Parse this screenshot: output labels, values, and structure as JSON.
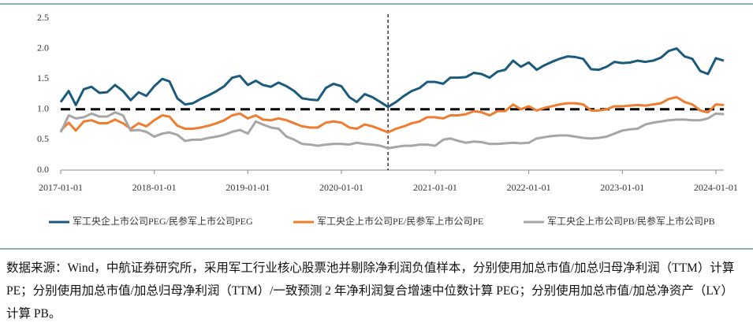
{
  "chart_data": {
    "type": "line",
    "x": [
      "2017-01-01",
      "2017-02-01",
      "2017-03-01",
      "2017-04-01",
      "2017-05-01",
      "2017-06-01",
      "2017-07-01",
      "2017-08-01",
      "2017-09-01",
      "2017-10-01",
      "2017-11-01",
      "2017-12-01",
      "2018-01-01",
      "2018-02-01",
      "2018-03-01",
      "2018-04-01",
      "2018-05-01",
      "2018-06-01",
      "2018-07-01",
      "2018-08-01",
      "2018-09-01",
      "2018-10-01",
      "2018-11-01",
      "2018-12-01",
      "2019-01-01",
      "2019-02-01",
      "2019-03-01",
      "2019-04-01",
      "2019-05-01",
      "2019-06-01",
      "2019-07-01",
      "2019-08-01",
      "2019-09-01",
      "2019-10-01",
      "2019-11-01",
      "2019-12-01",
      "2020-01-01",
      "2020-02-01",
      "2020-03-01",
      "2020-04-01",
      "2020-05-01",
      "2020-06-01",
      "2020-07-01",
      "2020-08-01",
      "2020-09-01",
      "2020-10-01",
      "2020-11-01",
      "2020-12-01",
      "2021-01-01",
      "2021-02-01",
      "2021-03-01",
      "2021-04-01",
      "2021-05-01",
      "2021-06-01",
      "2021-07-01",
      "2021-08-01",
      "2021-09-01",
      "2021-10-01",
      "2021-11-01",
      "2021-12-01",
      "2022-01-01",
      "2022-02-01",
      "2022-03-01",
      "2022-04-01",
      "2022-05-01",
      "2022-06-01",
      "2022-07-01",
      "2022-08-01",
      "2022-09-01",
      "2022-10-01",
      "2022-11-01",
      "2022-12-01",
      "2023-01-01",
      "2023-02-01",
      "2023-03-01",
      "2023-04-01",
      "2023-05-01",
      "2023-06-01",
      "2023-07-01",
      "2023-08-01",
      "2023-09-01",
      "2023-10-01",
      "2023-11-01",
      "2023-12-01",
      "2024-01-01",
      "2024-02-01"
    ],
    "series": [
      {
        "name": "军工央企上市公司PEG/民参军上市公司PEG",
        "color": "#1b5a7d",
        "values": [
          1.12,
          1.3,
          1.07,
          1.33,
          1.37,
          1.27,
          1.28,
          1.4,
          1.3,
          1.15,
          1.28,
          1.22,
          1.38,
          1.5,
          1.46,
          1.18,
          1.08,
          1.1,
          1.17,
          1.23,
          1.3,
          1.38,
          1.52,
          1.55,
          1.4,
          1.47,
          1.4,
          1.37,
          1.44,
          1.38,
          1.3,
          1.18,
          1.16,
          1.15,
          1.35,
          1.42,
          1.38,
          1.2,
          1.12,
          1.25,
          1.2,
          1.12,
          1.04,
          1.12,
          1.22,
          1.3,
          1.35,
          1.45,
          1.45,
          1.42,
          1.52,
          1.52,
          1.53,
          1.6,
          1.58,
          1.52,
          1.62,
          1.65,
          1.8,
          1.7,
          1.77,
          1.65,
          1.72,
          1.78,
          1.83,
          1.87,
          1.86,
          1.83,
          1.66,
          1.65,
          1.7,
          1.78,
          1.76,
          1.77,
          1.8,
          1.78,
          1.8,
          1.85,
          1.96,
          2.0,
          1.87,
          1.83,
          1.63,
          1.58,
          1.84,
          1.8
        ]
      },
      {
        "name": "军工央企上市公司PE/民参军上市公司PE",
        "color": "#ed7d31",
        "values": [
          0.65,
          0.78,
          0.65,
          0.8,
          0.82,
          0.77,
          0.77,
          0.83,
          0.77,
          0.68,
          0.77,
          0.72,
          0.82,
          0.9,
          0.88,
          0.73,
          0.68,
          0.68,
          0.7,
          0.73,
          0.77,
          0.82,
          0.9,
          0.93,
          0.85,
          0.9,
          0.83,
          0.82,
          0.85,
          0.82,
          0.77,
          0.72,
          0.7,
          0.7,
          0.78,
          0.8,
          0.78,
          0.7,
          0.68,
          0.75,
          0.72,
          0.67,
          0.62,
          0.68,
          0.72,
          0.77,
          0.8,
          0.87,
          0.87,
          0.85,
          0.9,
          0.9,
          0.92,
          0.97,
          0.95,
          0.9,
          0.97,
          0.97,
          1.08,
          1.0,
          1.05,
          0.98,
          1.02,
          1.05,
          1.08,
          1.1,
          1.1,
          1.08,
          0.98,
          0.98,
          1.0,
          1.05,
          1.05,
          1.06,
          1.07,
          1.06,
          1.08,
          1.1,
          1.17,
          1.2,
          1.12,
          1.08,
          0.98,
          0.95,
          1.08,
          1.07
        ]
      },
      {
        "name": "军工央企上市公司PB/民参军上市公司PB",
        "color": "#a6a6a6",
        "values": [
          0.62,
          0.9,
          0.85,
          0.87,
          0.93,
          0.88,
          0.88,
          0.95,
          0.9,
          0.65,
          0.66,
          0.63,
          0.55,
          0.6,
          0.62,
          0.58,
          0.48,
          0.5,
          0.5,
          0.53,
          0.55,
          0.58,
          0.63,
          0.66,
          0.6,
          0.8,
          0.75,
          0.7,
          0.68,
          0.55,
          0.5,
          0.43,
          0.42,
          0.4,
          0.42,
          0.43,
          0.43,
          0.42,
          0.45,
          0.43,
          0.42,
          0.4,
          0.36,
          0.38,
          0.4,
          0.4,
          0.42,
          0.42,
          0.4,
          0.5,
          0.52,
          0.48,
          0.45,
          0.47,
          0.46,
          0.43,
          0.43,
          0.44,
          0.45,
          0.44,
          0.45,
          0.52,
          0.54,
          0.56,
          0.57,
          0.57,
          0.55,
          0.53,
          0.52,
          0.53,
          0.55,
          0.6,
          0.65,
          0.67,
          0.68,
          0.75,
          0.78,
          0.8,
          0.82,
          0.83,
          0.83,
          0.82,
          0.82,
          0.85,
          0.93,
          0.92
        ]
      }
    ],
    "xlim": [
      "2017-01-01",
      "2024-02-01"
    ],
    "xticks": [
      "2017-01-01",
      "2018-01-01",
      "2019-01-01",
      "2020-01-01",
      "2021-01-01",
      "2022-01-01",
      "2023-01-01",
      "2024-01-01"
    ],
    "ylim": [
      0,
      2.5
    ],
    "yticks": [
      {
        "value": 0,
        "label": "0.0"
      },
      0.5,
      {
        "value": 1,
        "label": "1.0"
      },
      1.5,
      {
        "value": 2,
        "label": "2.0"
      },
      2.5
    ],
    "reference_lines": {
      "y": 1,
      "x": "2020-07-01"
    },
    "grid": false,
    "legend": "bottom",
    "note": "数据来源：Wind，中航证券研究所，采用军工行业核心股票池并剔除净利润负值样本，分别使用加总市值/加总归母净利润（TTM）计算 PE；分别使用加总市值/加总归母净利润（TTM）/一致预测 2 年净利润复合增速中位数计算 PEG；分别使用加总市值/加总净资产（LY）计算 PB。"
  }
}
